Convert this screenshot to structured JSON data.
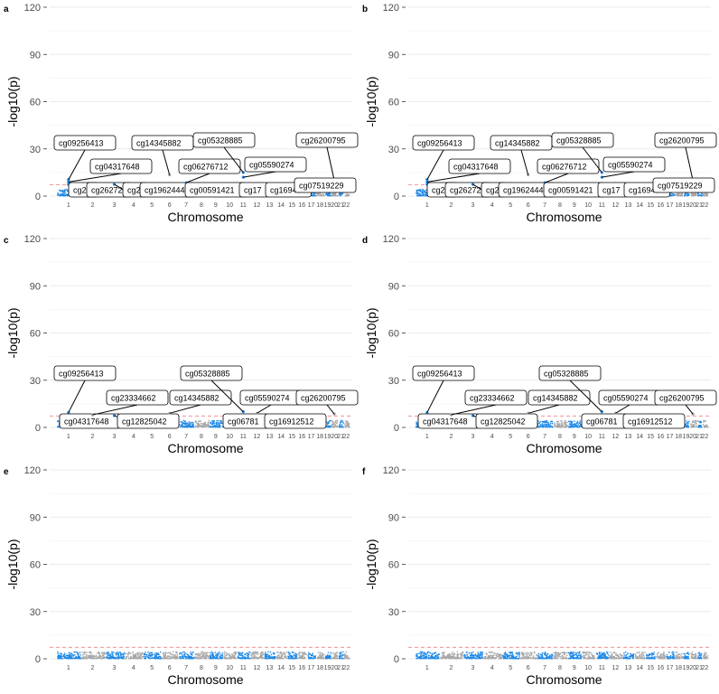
{
  "figure": {
    "xlabel": "Chromosome",
    "ylabel": "-log10(p)",
    "yticks": [
      0,
      30,
      60,
      90,
      120
    ],
    "ylim": [
      0,
      122
    ],
    "threshold": 7.3,
    "chromosome_labels": [
      "1",
      "2",
      "3",
      "4",
      "5",
      "6",
      "7",
      "8",
      "9",
      "10",
      "11",
      "12",
      "13",
      "14",
      "15",
      "16",
      "17",
      "18",
      "19",
      "20",
      "21",
      "22"
    ],
    "colors": {
      "odd_chromosome": "#1e88e5",
      "even_chromosome": "#a6a6a6",
      "threshold_line": "#f08080",
      "grid": "#ebebeb"
    }
  },
  "chart_data": [
    {
      "type": "scatter",
      "panel": "a",
      "xlabel": "Chromosome",
      "ylabel": "-log10(p)",
      "ylim": [
        0,
        120
      ],
      "threshold": 7.3,
      "annotations": [
        {
          "label": "cg09256413",
          "chr": 1,
          "y": 10.5,
          "shown": "cg09256413"
        },
        {
          "label": "cg04317648",
          "chr": 1,
          "y": 9,
          "shown": "cg04317648"
        },
        {
          "label": "cg20",
          "chr": 1,
          "y": 7.5,
          "shown": "cg20"
        },
        {
          "label": "cg26272",
          "chr": 2,
          "y": 7.5,
          "shown": "cg26272"
        },
        {
          "label": "cg2",
          "chr": 3,
          "y": 7.5,
          "shown": "cg2"
        },
        {
          "label": "cg14345882",
          "chr": 6,
          "y": 13.5,
          "shown": "cg14345882"
        },
        {
          "label": "cg19624444",
          "chr": 5,
          "y": 8,
          "shown": "cg1962444"
        },
        {
          "label": "cg06276712",
          "chr": 7,
          "y": 8.5,
          "shown": "cg06276712"
        },
        {
          "label": "cg00591421",
          "chr": 8,
          "y": 7.8,
          "shown": "cg00591421"
        },
        {
          "label": "cg05328885",
          "chr": 11,
          "y": 15,
          "shown": "cg05328885"
        },
        {
          "label": "cg05590274",
          "chr": 11,
          "y": 12,
          "shown": "cg05590274"
        },
        {
          "label": "cg17",
          "chr": 12,
          "y": 8,
          "shown": "cg17"
        },
        {
          "label": "cg16949",
          "chr": 16,
          "y": 8,
          "shown": "cg16949"
        },
        {
          "label": "cg26200795",
          "chr": 20,
          "y": 10,
          "shown": "cg26200795"
        },
        {
          "label": "cg07519229",
          "chr": 19,
          "y": 8,
          "shown": "cg07519229"
        }
      ]
    },
    {
      "type": "scatter",
      "panel": "b",
      "xlabel": "Chromosome",
      "ylabel": "-log10(p)",
      "ylim": [
        0,
        120
      ],
      "threshold": 7.3,
      "annotations": [
        {
          "label": "cg09256413",
          "chr": 1,
          "y": 10.5,
          "shown": "cg09256413"
        },
        {
          "label": "cg04317648",
          "chr": 1,
          "y": 9,
          "shown": "cg04317648"
        },
        {
          "label": "cg20",
          "chr": 1,
          "y": 7.5,
          "shown": "cg20"
        },
        {
          "label": "cg26272",
          "chr": 2,
          "y": 7.5,
          "shown": "cg26272"
        },
        {
          "label": "cg2",
          "chr": 3,
          "y": 7.5,
          "shown": "cg2"
        },
        {
          "label": "cg14345882",
          "chr": 6,
          "y": 13.5,
          "shown": "cg14345882"
        },
        {
          "label": "cg19624444",
          "chr": 5,
          "y": 8,
          "shown": "cg1962444"
        },
        {
          "label": "cg06276712",
          "chr": 7,
          "y": 8.5,
          "shown": "cg06276712"
        },
        {
          "label": "cg00591421",
          "chr": 8,
          "y": 7.8,
          "shown": "cg00591421"
        },
        {
          "label": "cg05328885",
          "chr": 11,
          "y": 15,
          "shown": "cg05328885"
        },
        {
          "label": "cg05590274",
          "chr": 11,
          "y": 12,
          "shown": "cg05590274"
        },
        {
          "label": "cg17",
          "chr": 12,
          "y": 8,
          "shown": "cg17"
        },
        {
          "label": "cg16949",
          "chr": 16,
          "y": 8,
          "shown": "cg16949"
        },
        {
          "label": "cg26200795",
          "chr": 20,
          "y": 10,
          "shown": "cg26200795"
        },
        {
          "label": "cg07519229",
          "chr": 19,
          "y": 8,
          "shown": "cg07519229"
        }
      ]
    },
    {
      "type": "scatter",
      "panel": "c",
      "xlabel": "Chromosome",
      "ylabel": "-log10(p)",
      "ylim": [
        0,
        120
      ],
      "threshold": 7.3,
      "annotations": [
        {
          "label": "cg09256413",
          "chr": 1,
          "y": 9.5,
          "shown": "cg09256413"
        },
        {
          "label": "cg04317648",
          "chr": 1,
          "y": 8,
          "shown": "cg04317648"
        },
        {
          "label": "cg23334662",
          "chr": 2,
          "y": 8,
          "shown": "cg23334662"
        },
        {
          "label": "cg12825042",
          "chr": 3,
          "y": 7.5,
          "shown": "cg12825042"
        },
        {
          "label": "cg14345882",
          "chr": 6,
          "y": 9,
          "shown": "cg14345882"
        },
        {
          "label": "cg05328885",
          "chr": 11,
          "y": 10,
          "shown": "cg05328885"
        },
        {
          "label": "cg06781",
          "chr": 11,
          "y": 8,
          "shown": "cg06781"
        },
        {
          "label": "cg05590274",
          "chr": 12,
          "y": 9,
          "shown": "cg05590274"
        },
        {
          "label": "cg16912512",
          "chr": 15,
          "y": 8,
          "shown": "cg16912512"
        },
        {
          "label": "cg26200795",
          "chr": 20,
          "y": 8.5,
          "shown": "cg26200795"
        }
      ]
    },
    {
      "type": "scatter",
      "panel": "d",
      "xlabel": "Chromosome",
      "ylabel": "-log10(p)",
      "ylim": [
        0,
        120
      ],
      "threshold": 7.3,
      "annotations": [
        {
          "label": "cg09256413",
          "chr": 1,
          "y": 9.5,
          "shown": "cg09256413"
        },
        {
          "label": "cg04317648",
          "chr": 1,
          "y": 8,
          "shown": "cg04317648"
        },
        {
          "label": "cg23334662",
          "chr": 2,
          "y": 8,
          "shown": "cg23334662"
        },
        {
          "label": "cg12825042",
          "chr": 3,
          "y": 7.5,
          "shown": "cg12825042"
        },
        {
          "label": "cg14345882",
          "chr": 6,
          "y": 9,
          "shown": "cg14345882"
        },
        {
          "label": "cg05328885",
          "chr": 11,
          "y": 10,
          "shown": "cg05328885"
        },
        {
          "label": "cg06781",
          "chr": 11,
          "y": 8,
          "shown": "cg06781"
        },
        {
          "label": "cg05590274",
          "chr": 12,
          "y": 9,
          "shown": "cg05590274"
        },
        {
          "label": "cg16912512",
          "chr": 15,
          "y": 8,
          "shown": "cg16912512"
        },
        {
          "label": "cg26200795",
          "chr": 20,
          "y": 8.5,
          "shown": "cg26200795"
        }
      ]
    },
    {
      "type": "scatter",
      "panel": "e",
      "xlabel": "Chromosome",
      "ylabel": "-log10(p)",
      "ylim": [
        0,
        120
      ],
      "threshold": 7.3,
      "annotations": []
    },
    {
      "type": "scatter",
      "panel": "f",
      "xlabel": "Chromosome",
      "ylabel": "-log10(p)",
      "ylim": [
        0,
        120
      ],
      "threshold": 7.3,
      "annotations": []
    }
  ]
}
